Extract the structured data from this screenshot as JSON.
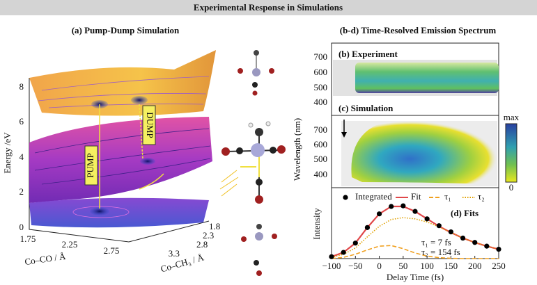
{
  "header": {
    "title": "Experimental Response in Simulations"
  },
  "panel_a": {
    "title": "(a) Pump-Dump Simulation",
    "y_label": "Energy /eV",
    "y_ticks": [
      0,
      2,
      4,
      6,
      8
    ],
    "x_label": "Co–CO / Å",
    "x_ticks": [
      1.75,
      2.25,
      2.75
    ],
    "z_label": "Co–CH₃ / Å",
    "z_ticks": [
      1.8,
      2.3,
      2.8,
      3.3
    ],
    "pump": "PUMP",
    "dump": "DUMP"
  },
  "panel_bd": {
    "title": "(b-d) Time-Resolved Emission Spectrum",
    "y_label": "Wavelength (nm)",
    "b": {
      "label": "(b) Experiment",
      "y_ticks": [
        400,
        500,
        600,
        700
      ]
    },
    "c": {
      "label": "(c) Simulation",
      "y_ticks": [
        400,
        500,
        600,
        700
      ]
    },
    "colorbar": {
      "max": "max",
      "min": "0"
    }
  },
  "chart_data": {
    "type": "line",
    "title": "(d) Fits",
    "x_label": "Delay Time (fs)",
    "y_label": "Intensity",
    "x": [
      -100,
      -75,
      -50,
      -25,
      0,
      25,
      50,
      75,
      100,
      125,
      150,
      175,
      200,
      225,
      250
    ],
    "xlim": [
      -100,
      250
    ],
    "xticks": [
      {
        "value": -100,
        "label": "−100"
      },
      {
        "value": -50,
        "label": "−50"
      },
      0,
      50,
      100,
      150,
      200,
      250
    ],
    "ylim": [
      0,
      1
    ],
    "series": [
      {
        "name": "Integrated",
        "type": "scatter",
        "color": "#000000",
        "values": [
          0.03,
          0.1,
          0.25,
          0.5,
          0.72,
          0.84,
          0.85,
          0.76,
          0.64,
          0.53,
          0.43,
          0.33,
          0.26,
          0.2,
          0.15
        ]
      },
      {
        "name": "Fit",
        "type": "solid",
        "color": "#e0484a",
        "values": [
          0.03,
          0.1,
          0.25,
          0.5,
          0.72,
          0.84,
          0.84,
          0.76,
          0.64,
          0.52,
          0.42,
          0.33,
          0.26,
          0.2,
          0.15
        ]
      },
      {
        "name": "τ₁",
        "type": "dashed",
        "color": "#f0a020",
        "values": [
          0.0,
          0.02,
          0.07,
          0.14,
          0.2,
          0.21,
          0.16,
          0.09,
          0.04,
          0.015,
          0.005,
          0,
          0,
          0,
          0
        ]
      },
      {
        "name": "τ₂",
        "type": "dotted",
        "color": "#e0a000",
        "values": [
          0.02,
          0.07,
          0.17,
          0.35,
          0.52,
          0.63,
          0.66,
          0.64,
          0.59,
          0.51,
          0.42,
          0.33,
          0.26,
          0.2,
          0.15
        ]
      }
    ],
    "annotations": [
      "τ₁ = 7 fs",
      "τ₂ = 154 fs"
    ]
  }
}
